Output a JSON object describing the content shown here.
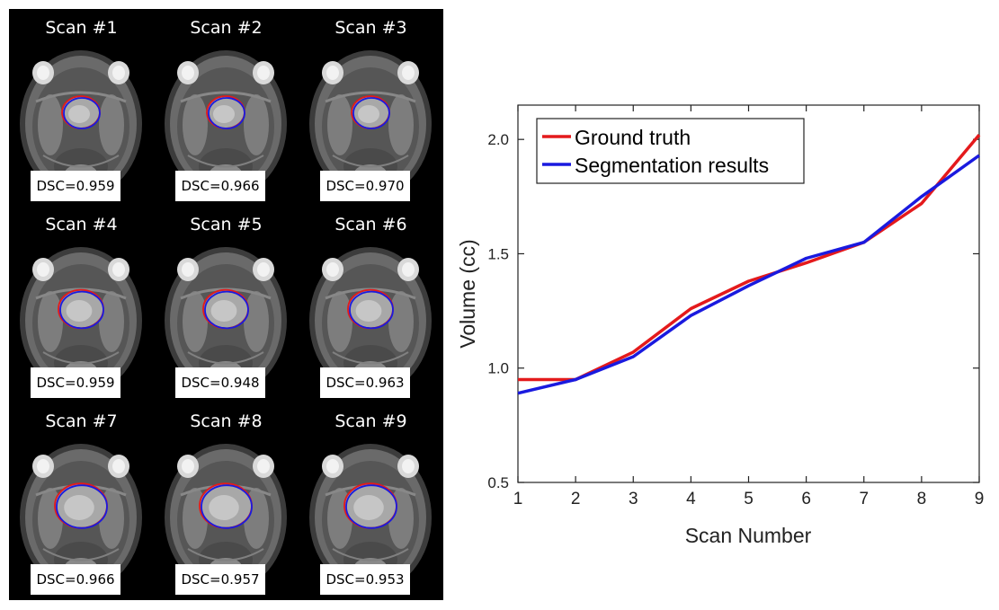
{
  "scans": [
    {
      "title": "Scan #1",
      "dsc": "DSC=0.959"
    },
    {
      "title": "Scan #2",
      "dsc": "DSC=0.966"
    },
    {
      "title": "Scan #3",
      "dsc": "DSC=0.970"
    },
    {
      "title": "Scan #4",
      "dsc": "DSC=0.959"
    },
    {
      "title": "Scan #5",
      "dsc": "DSC=0.948"
    },
    {
      "title": "Scan #6",
      "dsc": "DSC=0.963"
    },
    {
      "title": "Scan #7",
      "dsc": "DSC=0.966"
    },
    {
      "title": "Scan #8",
      "dsc": "DSC=0.957"
    },
    {
      "title": "Scan #9",
      "dsc": "DSC=0.953"
    }
  ],
  "chart_data": {
    "type": "line",
    "x": [
      1,
      2,
      3,
      4,
      5,
      6,
      7,
      8,
      9
    ],
    "x_tick_labels": [
      "1",
      "2",
      "3",
      "4",
      "5",
      "6",
      "7",
      "8",
      "9"
    ],
    "y_tick_labels": [
      "0.5",
      "1.0",
      "1.5",
      "2.0"
    ],
    "y_ticks": [
      0.5,
      1.0,
      1.5,
      2.0
    ],
    "xlim": [
      1,
      9
    ],
    "ylim": [
      0.5,
      2.15
    ],
    "xlabel": "Scan Number",
    "ylabel": "Volume (cc)",
    "legend_position": "top-left",
    "series": [
      {
        "name": "Ground truth",
        "color": "#e41a1c",
        "values": [
          0.95,
          0.95,
          1.07,
          1.26,
          1.38,
          1.46,
          1.55,
          1.72,
          2.02
        ]
      },
      {
        "name": "Segmentation results",
        "color": "#1a1adf",
        "values": [
          0.89,
          0.95,
          1.05,
          1.23,
          1.36,
          1.48,
          1.55,
          1.75,
          1.93
        ]
      }
    ]
  }
}
